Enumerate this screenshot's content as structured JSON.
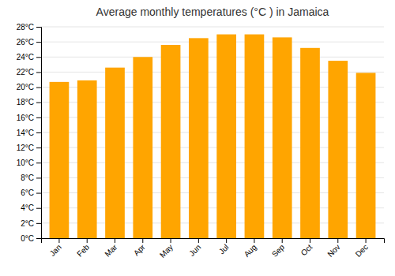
{
  "chart_data": {
    "type": "bar",
    "title": "Average monthly temperatures (°C ) in Jamaica",
    "categories": [
      "Jan",
      "Feb",
      "Mar",
      "Apr",
      "May",
      "Jun",
      "Jul",
      "Aug",
      "Sep",
      "Oct",
      "Nov",
      "Dec"
    ],
    "values": [
      20.7,
      20.9,
      22.6,
      24.0,
      25.6,
      26.5,
      27.0,
      27.0,
      26.6,
      25.2,
      23.5,
      21.9
    ],
    "color": "#FFA500",
    "ylim": [
      0,
      28
    ],
    "yticks": [
      {
        "value": 0,
        "label": "0°C"
      },
      {
        "value": 2,
        "label": "2°C"
      },
      {
        "value": 4,
        "label": "4°C"
      },
      {
        "value": 6,
        "label": "6°C"
      },
      {
        "value": 8,
        "label": "8°C"
      },
      {
        "value": 10,
        "label": "10°C"
      },
      {
        "value": 12,
        "label": "12°C"
      },
      {
        "value": 14,
        "label": "14°C"
      },
      {
        "value": 16,
        "label": "16°C"
      },
      {
        "value": 18,
        "label": "18°C"
      },
      {
        "value": 20,
        "label": "20°C"
      },
      {
        "value": 22,
        "label": "22°C"
      },
      {
        "value": 24,
        "label": "24°C"
      },
      {
        "value": 26,
        "label": "26°C"
      },
      {
        "value": 28,
        "label": "28°C"
      }
    ],
    "grid": true
  }
}
